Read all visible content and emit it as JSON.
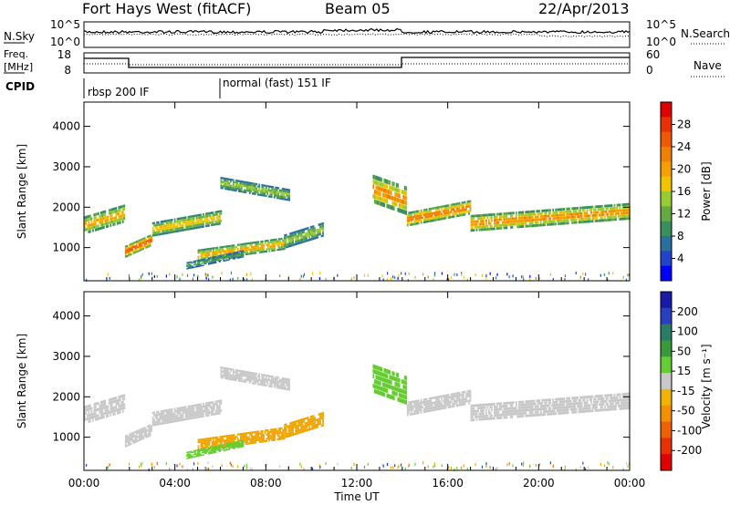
{
  "header": {
    "station": "Fort Hays West (fitACF)",
    "beam": "Beam 05",
    "date": "22/Apr/2013"
  },
  "noise_panel": {
    "left_label": "N.Sky",
    "right_label": "N.Search",
    "left_ticks": [
      "10^5",
      "10^0"
    ],
    "right_ticks": [
      "10^5",
      "10^0"
    ]
  },
  "freq_panel": {
    "left_label_1": "Freq.",
    "left_label_2": "[MHz]",
    "left_ticks": [
      "18",
      "8"
    ],
    "right_label": "Nave",
    "right_ticks": [
      "60",
      "0"
    ]
  },
  "cpid_panel": {
    "label": "CPID",
    "segments": [
      {
        "name": "rbsp 200 IF",
        "start_hour": 0
      },
      {
        "name": "normal (fast) 151 IF",
        "start_hour": 6
      }
    ]
  },
  "chart_data": [
    {
      "type": "heatmap",
      "title": "",
      "xlabel": "Time UT",
      "ylabel": "Slant Range [km]",
      "x_ticks": [
        "00:00",
        "04:00",
        "08:00",
        "12:00",
        "16:00",
        "20:00",
        "00:00"
      ],
      "y_ticks": [
        "1000",
        "2000",
        "3000",
        "4000"
      ],
      "xlim_hours": [
        0,
        24
      ],
      "ylim_km": [
        180,
        4600
      ],
      "colorbar": {
        "label": "Power [dB]",
        "ticks": [
          "4",
          "8",
          "12",
          "16",
          "20",
          "24",
          "28"
        ],
        "range": [
          0,
          32
        ],
        "colors": [
          "#0000ff",
          "#2244cc",
          "#2a6f9e",
          "#3a8f60",
          "#66aa44",
          "#99cc33",
          "#f2c400",
          "#f5a000",
          "#f08000",
          "#ef5a00",
          "#e83000",
          "#e00000"
        ]
      }
    },
    {
      "type": "heatmap",
      "title": "",
      "xlabel": "Time UT",
      "ylabel": "Slant Range [km]",
      "x_ticks": [
        "00:00",
        "04:00",
        "08:00",
        "12:00",
        "16:00",
        "20:00",
        "00:00"
      ],
      "y_ticks": [
        "1000",
        "2000",
        "3000",
        "4000"
      ],
      "xlim_hours": [
        0,
        24
      ],
      "ylim_km": [
        180,
        4600
      ],
      "colorbar": {
        "label": "Velocity [m s^-1]",
        "ticks": [
          "200",
          "100",
          "50",
          "15",
          "-15",
          "-50",
          "-100",
          "-200"
        ],
        "range": [
          -250,
          250
        ],
        "colors": [
          "#1a1aa8",
          "#2a3fbf",
          "#2a7c66",
          "#3a9a3a",
          "#66cc33",
          "#c8c8c8",
          "#f0b400",
          "#f59000",
          "#ef6000",
          "#e83000",
          "#e00000"
        ]
      }
    }
  ],
  "echo_bands": [
    {
      "start_hour": 0.0,
      "end_hour": 1.8,
      "range_km": 1700,
      "thickness_km": 380,
      "power_db": 20,
      "velocity": 0
    },
    {
      "start_hour": 1.8,
      "end_hour": 3.0,
      "range_km": 1050,
      "thickness_km": 250,
      "power_db": 26,
      "velocity": 0
    },
    {
      "start_hour": 3.0,
      "end_hour": 6.0,
      "range_km": 1600,
      "thickness_km": 300,
      "power_db": 18,
      "velocity": 0
    },
    {
      "start_hour": 6.0,
      "end_hour": 9.0,
      "range_km": 2450,
      "thickness_km": 250,
      "power_db": 14,
      "velocity": 0
    },
    {
      "start_hour": 5.0,
      "end_hour": 8.8,
      "range_km": 950,
      "thickness_km": 260,
      "power_db": 20,
      "velocity": -60
    },
    {
      "start_hour": 8.8,
      "end_hour": 10.5,
      "range_km": 1300,
      "thickness_km": 300,
      "power_db": 14,
      "velocity": -60
    },
    {
      "start_hour": 4.5,
      "end_hour": 7.0,
      "range_km": 700,
      "thickness_km": 150,
      "power_db": 10,
      "velocity": 60
    },
    {
      "start_hour": 12.7,
      "end_hour": 14.2,
      "range_km": 2300,
      "thickness_km": 600,
      "power_db": 22,
      "velocity": 60
    },
    {
      "start_hour": 14.2,
      "end_hour": 17.0,
      "range_km": 1850,
      "thickness_km": 300,
      "power_db": 24,
      "velocity": 0
    },
    {
      "start_hour": 17.0,
      "end_hour": 24.0,
      "range_km": 1750,
      "thickness_km": 350,
      "power_db": 22,
      "velocity": 0
    }
  ]
}
